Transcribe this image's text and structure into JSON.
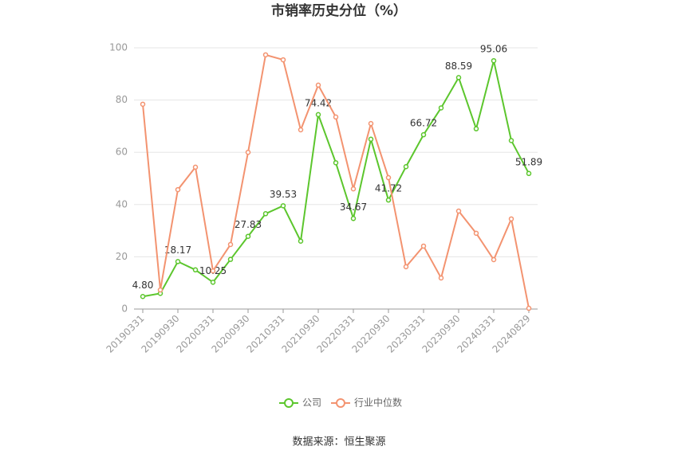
{
  "chart_data": {
    "type": "line",
    "title": "市销率历史分位（%）",
    "categories": [
      "20190331",
      null,
      "20190930",
      null,
      "20200331",
      null,
      "20200930",
      null,
      "20210331",
      null,
      "20210930",
      null,
      "20220331",
      null,
      "20220930",
      null,
      "20230331",
      null,
      "20230930",
      null,
      "20240331",
      null,
      "20240829"
    ],
    "series": [
      {
        "name": "公司",
        "color": "#5cc62d",
        "values": [
          4.8,
          6,
          18.17,
          15,
          10.25,
          19,
          27.83,
          36.5,
          39.53,
          26,
          74.42,
          56,
          34.67,
          65,
          41.72,
          54.5,
          66.72,
          77,
          88.59,
          69,
          95.06,
          64.5,
          51.89
        ],
        "value_labels": [
          "4.80",
          null,
          "18.17",
          null,
          "10.25",
          null,
          "27.83",
          null,
          "39.53",
          null,
          "74.42",
          null,
          "34.67",
          null,
          "41.72",
          null,
          "66.72",
          null,
          "88.59",
          null,
          "95.06",
          null,
          "51.89"
        ]
      },
      {
        "name": "行业中位数",
        "color": "#f39370",
        "values": [
          78.4,
          7.3,
          45.7,
          54.3,
          14.6,
          24.7,
          60,
          97.3,
          95.4,
          68.6,
          85.7,
          73.5,
          46,
          71,
          50.3,
          16.2,
          24.1,
          11.9,
          37.5,
          29,
          18.9,
          34.5,
          0.3
        ]
      }
    ],
    "ylim": [
      0,
      100
    ],
    "yticks": [
      0,
      20,
      40,
      60,
      80,
      100
    ],
    "grid": true,
    "source": "数据来源：恒生聚源"
  }
}
